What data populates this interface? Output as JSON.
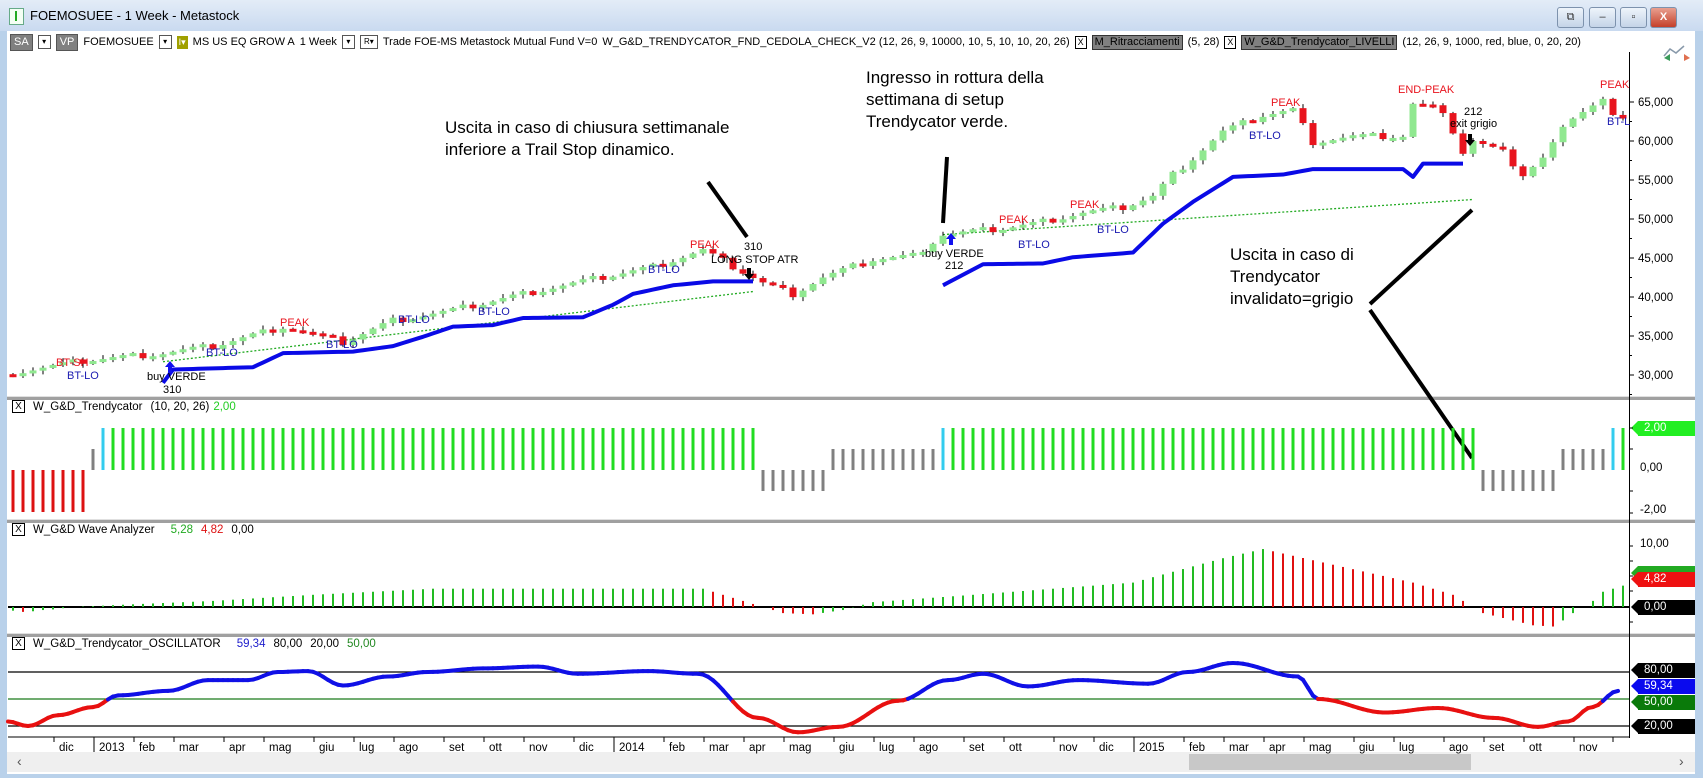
{
  "window": {
    "title": "FOEMOSUEE - 1 Week - Metastock",
    "buttons": [
      "⧉",
      "–",
      "▫",
      "X"
    ]
  },
  "toolbar": {
    "sa": "SA",
    "vp": "VP",
    "symbol": "FOEMOSUEE",
    "fund_name": "MS US EQ GROW A",
    "period": "1 Week",
    "r": "R▾",
    "info": "Trade  FOE-MS  Metastock  Mutual Fund  V=0",
    "indicator1": "W_G&D_TRENDYCATOR_FND_CEDOLA_CHECK_V2 (12, 26, 9, 10000, 10, 5, 10, 10, 20, 26)",
    "indicator2": "M_Ritracciamenti",
    "indicator2_params": "(5, 28)",
    "indicator3": "W_G&D_Trendycator_LIVELLI",
    "indicator3_params": "(12, 26, 9, 1000, red, blue, 0, 20, 20)",
    "close_x": "X",
    "drop": "▾",
    "yellow": "I▾"
  },
  "callouts": {
    "exit_trail": [
      "Uscita in caso di chiusura settimanale",
      "inferiore a Trail Stop dinamico."
    ],
    "entry": [
      "Ingresso in rottura della",
      "settimana di setup",
      "Trendycator verde."
    ],
    "exit_grey": [
      "Uscita in caso di",
      "Trendycator",
      "invalidato=grigio"
    ]
  },
  "panes": {
    "trendycator": {
      "name": "W_G&D_Trendycator",
      "params": "(10,  20,  26)",
      "value": "2,00"
    },
    "wave": {
      "name": "W_G&D Wave Analyzer",
      "v1": "5,28",
      "v2": "4,82",
      "v3": "0,00"
    },
    "oscillator": {
      "name": "W_G&D_Trendycator_OSCILLATOR",
      "v1": "59,34",
      "v2": "80,00",
      "v3": "20,00",
      "v4": "50,00"
    }
  },
  "axis_tags": {
    "trend": {
      "label": "2,00",
      "color": "#22ee22"
    },
    "trend_ticks": [
      "0,00",
      "-2,00"
    ],
    "wave_ticks": [
      "10,00"
    ],
    "wave_val": {
      "label": "4,82",
      "color": "#ee1111"
    },
    "wave_zero": {
      "label": "0,00",
      "color": "#000000"
    },
    "osc80": {
      "label": "80,00",
      "color": "#000000"
    },
    "osc_val": {
      "label": "59,34",
      "color": "#0a0aee"
    },
    "osc50": {
      "label": "50,00",
      "color": "#0a7a0a"
    },
    "osc20": {
      "label": "20,00",
      "color": "#000000"
    }
  },
  "chart_data": {
    "type": "candlestick",
    "x_unit": "week",
    "price_axis": {
      "ticks": [
        30000,
        35000,
        40000,
        45000,
        50000,
        55000,
        60000,
        65000
      ],
      "labels": [
        "30,000",
        "35,000",
        "40,000",
        "45,000",
        "50,000",
        "55,000",
        "60,000",
        "65,000"
      ]
    },
    "x_labels": [
      {
        "w": 4,
        "t": "dic"
      },
      {
        "w": 8,
        "t": "2013",
        "year": true
      },
      {
        "w": 12,
        "t": "feb"
      },
      {
        "w": 16,
        "t": "mar"
      },
      {
        "w": 21,
        "t": "apr"
      },
      {
        "w": 25,
        "t": "mag"
      },
      {
        "w": 30,
        "t": "giu"
      },
      {
        "w": 34,
        "t": "lug"
      },
      {
        "w": 38,
        "t": "ago"
      },
      {
        "w": 43,
        "t": "set"
      },
      {
        "w": 47,
        "t": "ott"
      },
      {
        "w": 51,
        "t": "nov"
      },
      {
        "w": 56,
        "t": "dic"
      },
      {
        "w": 60,
        "t": "2014",
        "year": true
      },
      {
        "w": 65,
        "t": "feb"
      },
      {
        "w": 69,
        "t": "mar"
      },
      {
        "w": 73,
        "t": "apr"
      },
      {
        "w": 77,
        "t": "mag"
      },
      {
        "w": 82,
        "t": "giu"
      },
      {
        "w": 86,
        "t": "lug"
      },
      {
        "w": 90,
        "t": "ago"
      },
      {
        "w": 95,
        "t": "set"
      },
      {
        "w": 99,
        "t": "ott"
      },
      {
        "w": 104,
        "t": "nov"
      },
      {
        "w": 108,
        "t": "dic"
      },
      {
        "w": 112,
        "t": "2015",
        "year": true
      },
      {
        "w": 117,
        "t": "feb"
      },
      {
        "w": 121,
        "t": "mar"
      },
      {
        "w": 125,
        "t": "apr"
      },
      {
        "w": 129,
        "t": "mag"
      },
      {
        "w": 134,
        "t": "giu"
      },
      {
        "w": 138,
        "t": "lug"
      },
      {
        "w": 143,
        "t": "ago"
      },
      {
        "w": 147,
        "t": "set"
      },
      {
        "w": 151,
        "t": "ott"
      },
      {
        "w": 156,
        "t": "nov"
      }
    ],
    "weeks": 162,
    "close_anchors": [
      [
        0,
        30300
      ],
      [
        8,
        32000
      ],
      [
        15,
        32800
      ],
      [
        20,
        33700
      ],
      [
        27,
        36200
      ],
      [
        33,
        34200
      ],
      [
        38,
        37000
      ],
      [
        44,
        38300
      ],
      [
        51,
        40400
      ],
      [
        57,
        42000
      ],
      [
        64,
        43900
      ],
      [
        69,
        46000
      ],
      [
        72,
        43900
      ],
      [
        75,
        41800
      ],
      [
        78,
        40400
      ],
      [
        81,
        42500
      ],
      [
        86,
        44800
      ],
      [
        90,
        45300
      ],
      [
        93,
        48000
      ],
      [
        99,
        48800
      ],
      [
        102,
        49400
      ],
      [
        107,
        50800
      ],
      [
        111,
        51500
      ],
      [
        114,
        52900
      ],
      [
        116,
        55700
      ],
      [
        118,
        57800
      ],
      [
        121,
        61200
      ],
      [
        125,
        63300
      ],
      [
        128,
        64000
      ],
      [
        130,
        59900
      ],
      [
        134,
        60600
      ],
      [
        139,
        60600
      ],
      [
        140,
        64700
      ],
      [
        143,
        64000
      ],
      [
        145,
        58500
      ],
      [
        146,
        60000
      ],
      [
        149,
        58500
      ],
      [
        151,
        55700
      ],
      [
        153,
        57800
      ],
      [
        156,
        63300
      ],
      [
        159,
        65400
      ],
      [
        160,
        63200
      ],
      [
        161,
        62600
      ]
    ],
    "trail_stop": [
      [
        [
          15,
          29000
        ],
        [
          16,
          30700
        ],
        [
          24,
          31000
        ],
        [
          27,
          32800
        ],
        [
          34,
          33000
        ],
        [
          38,
          33700
        ],
        [
          41,
          34900
        ],
        [
          44,
          36200
        ],
        [
          48,
          36400
        ],
        [
          51,
          37300
        ],
        [
          57,
          37400
        ],
        [
          60,
          39000
        ],
        [
          62,
          40400
        ],
        [
          66,
          41500
        ],
        [
          70,
          42000
        ],
        [
          74,
          42000
        ]
      ],
      [
        [
          93,
          41500
        ],
        [
          97,
          44200
        ],
        [
          103,
          44300
        ],
        [
          106,
          45100
        ],
        [
          112,
          45700
        ],
        [
          115,
          49400
        ],
        [
          118,
          52200
        ],
        [
          122,
          55400
        ],
        [
          127,
          55700
        ],
        [
          130,
          56400
        ],
        [
          139,
          56400
        ],
        [
          140,
          55400
        ],
        [
          141,
          57100
        ],
        [
          145,
          57100
        ]
      ]
    ],
    "support_dotted": [
      [
        [
          15,
          31700
        ],
        [
          74,
          40700
        ]
      ],
      [
        [
          93,
          48000
        ],
        [
          146,
          52500
        ]
      ]
    ],
    "labels": [
      {
        "t": "BT-SH",
        "w": 4.3,
        "p": 31150,
        "c": "#e8141e"
      },
      {
        "t": "BT-LO",
        "w": 5.4,
        "p": 30130,
        "c": "#1a1ab0"
      },
      {
        "t": "buy VERDE",
        "w": 13.4,
        "p": 29360,
        "c": "#000"
      },
      {
        "t": "310",
        "w": 15,
        "p": 27950,
        "c": "#000"
      },
      {
        "t": "BT-LO",
        "w": 19.3,
        "p": 32440,
        "c": "#1a1ab0"
      },
      {
        "t": "PEAK",
        "w": 26.7,
        "p": 36280,
        "c": "#e8141e"
      },
      {
        "t": "BT-LO",
        "w": 31.3,
        "p": 33460,
        "c": "#1a1ab0"
      },
      {
        "t": "BT-LO",
        "w": 38.5,
        "p": 36670,
        "c": "#1a1ab0"
      },
      {
        "t": "BT-LO",
        "w": 46.5,
        "p": 37690,
        "c": "#1a1ab0"
      },
      {
        "t": "BT-LO",
        "w": 63.5,
        "p": 43080,
        "c": "#1a1ab0"
      },
      {
        "t": "PEAK",
        "w": 67.7,
        "p": 46280,
        "c": "#e8141e"
      },
      {
        "t": "310",
        "w": 73.1,
        "p": 46030,
        "c": "#000"
      },
      {
        "t": "LONG STOP ATR",
        "w": 69.8,
        "p": 44620,
        "c": "#000"
      },
      {
        "t": "buy VERDE",
        "w": 91.2,
        "p": 45130,
        "c": "#000"
      },
      {
        "t": "212",
        "w": 93.2,
        "p": 43590,
        "c": "#000"
      },
      {
        "t": "PEAK",
        "w": 98.6,
        "p": 49490,
        "c": "#e8141e"
      },
      {
        "t": "BT-LO",
        "w": 100.5,
        "p": 46280,
        "c": "#1a1ab0"
      },
      {
        "t": "PEAK",
        "w": 105.7,
        "p": 51410,
        "c": "#e8141e"
      },
      {
        "t": "BT-LO",
        "w": 108.4,
        "p": 48210,
        "c": "#1a1ab0"
      },
      {
        "t": "BT-LO",
        "w": 123.6,
        "p": 60260,
        "c": "#1a1ab0"
      },
      {
        "t": "PEAK",
        "w": 125.8,
        "p": 64490,
        "c": "#e8141e"
      },
      {
        "t": "END-PEAK",
        "w": 138.5,
        "p": 66150,
        "c": "#e8141e"
      },
      {
        "t": "212",
        "w": 145.1,
        "p": 63330,
        "c": "#000"
      },
      {
        "t": "exit grigio",
        "w": 143.7,
        "p": 61790,
        "c": "#000"
      },
      {
        "t": "PEAK",
        "w": 158.7,
        "p": 66800,
        "c": "#e8141e"
      },
      {
        "t": "BT-L",
        "w": 159.4,
        "p": 62050,
        "c": "#1a1ab0"
      }
    ],
    "arrows": [
      {
        "dir": "up",
        "w": 15.7,
        "p": 30770,
        "c": "#1010ee"
      },
      {
        "dir": "up",
        "w": 93.8,
        "p": 47180,
        "c": "#1010ee"
      },
      {
        "dir": "down",
        "w": 73.6,
        "p": 43210,
        "c": "#000"
      },
      {
        "dir": "down",
        "w": 145.7,
        "p": 60380,
        "c": "#000"
      }
    ],
    "trendycator_segments": [
      {
        "from": 0,
        "to": 7,
        "v": -2,
        "c": "#dd1111"
      },
      {
        "from": 8,
        "to": 8,
        "v": 1,
        "c": "#808080"
      },
      {
        "from": 9,
        "to": 9,
        "v": 2,
        "c": "#33ccee"
      },
      {
        "from": 10,
        "to": 74,
        "v": 2,
        "c": "#22dd22"
      },
      {
        "from": 75,
        "to": 81,
        "v": -1,
        "c": "#808080"
      },
      {
        "from": 82,
        "to": 92,
        "v": 1,
        "c": "#808080"
      },
      {
        "from": 93,
        "to": 93,
        "v": 2,
        "c": "#33ccee"
      },
      {
        "from": 94,
        "to": 146,
        "v": 2,
        "c": "#22dd22"
      },
      {
        "from": 147,
        "to": 154,
        "v": -1,
        "c": "#808080"
      },
      {
        "from": 155,
        "to": 159,
        "v": 1,
        "c": "#808080"
      },
      {
        "from": 160,
        "to": 160,
        "v": 2,
        "c": "#33ccee"
      },
      {
        "from": 161,
        "to": 161,
        "v": 2,
        "c": "#22dd22"
      }
    ],
    "wave_anchors": [
      [
        0,
        -0.6
      ],
      [
        1,
        -0.8
      ],
      [
        2,
        -0.7
      ],
      [
        3,
        -0.5
      ],
      [
        4,
        -0.4
      ],
      [
        5,
        -0.2
      ],
      [
        6,
        0
      ],
      [
        10,
        0.3
      ],
      [
        20,
        1
      ],
      [
        30,
        2
      ],
      [
        42,
        3
      ],
      [
        55,
        3
      ],
      [
        69,
        3
      ],
      [
        75,
        0
      ],
      [
        77,
        -1
      ],
      [
        80,
        -1.2
      ],
      [
        83,
        -0.5
      ],
      [
        86,
        0.8
      ],
      [
        96,
        2
      ],
      [
        112,
        4
      ],
      [
        121,
        8
      ],
      [
        125,
        9.5
      ],
      [
        140,
        4
      ],
      [
        144,
        2
      ],
      [
        146,
        0
      ],
      [
        147,
        -1
      ],
      [
        152,
        -3
      ],
      [
        154,
        -3.2
      ],
      [
        155,
        -2.2
      ],
      [
        156,
        -1
      ],
      [
        157,
        0
      ],
      [
        158,
        1
      ],
      [
        159,
        2.5
      ],
      [
        160,
        3
      ],
      [
        161,
        3.5
      ]
    ],
    "oscillator_anchors": [
      [
        0,
        25
      ],
      [
        2,
        20
      ],
      [
        5,
        32
      ],
      [
        8.5,
        41
      ],
      [
        11,
        54
      ],
      [
        16,
        59
      ],
      [
        20,
        71
      ],
      [
        24,
        71
      ],
      [
        27,
        80
      ],
      [
        30,
        81
      ],
      [
        33.5,
        65
      ],
      [
        38,
        75
      ],
      [
        42,
        80
      ],
      [
        47.6,
        84
      ],
      [
        53,
        86
      ],
      [
        57,
        78
      ],
      [
        64,
        81
      ],
      [
        69,
        78
      ],
      [
        75,
        29
      ],
      [
        79,
        13
      ],
      [
        83,
        19
      ],
      [
        89,
        48
      ],
      [
        94,
        71
      ],
      [
        97.5,
        78
      ],
      [
        102,
        64
      ],
      [
        107,
        71
      ],
      [
        114,
        67
      ],
      [
        118,
        80
      ],
      [
        122.5,
        90
      ],
      [
        129,
        75
      ],
      [
        131,
        50
      ],
      [
        137.7,
        35
      ],
      [
        143,
        40
      ],
      [
        148.6,
        29
      ],
      [
        153,
        19
      ],
      [
        156,
        25
      ],
      [
        158.4,
        41
      ],
      [
        161,
        59
      ]
    ],
    "oscillator_levels": [
      80,
      50,
      20
    ]
  }
}
